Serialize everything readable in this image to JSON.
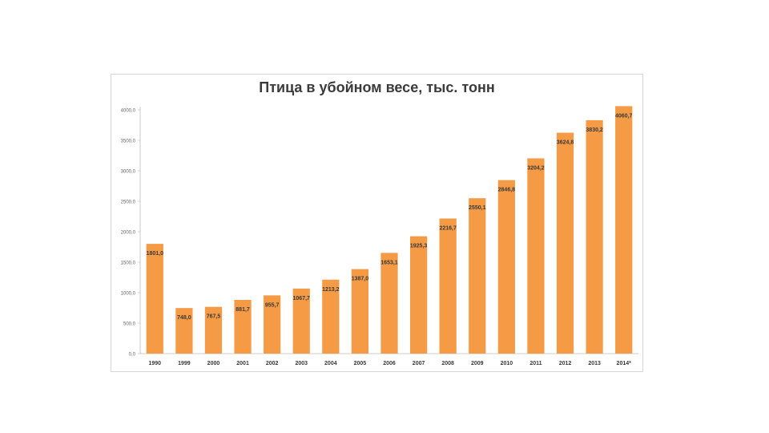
{
  "chart_data": {
    "type": "bar",
    "title": "Птица в убойном весе, тыс. тонн",
    "xlabel": "",
    "ylabel": "",
    "ylim": [
      0,
      4000
    ],
    "yticks": [
      0,
      500,
      1000,
      1500,
      2000,
      2500,
      3000,
      3500,
      4000
    ],
    "ytick_labels": [
      "0,0",
      "500,0",
      "1000,0",
      "1500,0",
      "2000,0",
      "2500,0",
      "3000,0",
      "3500,0",
      "4000,0"
    ],
    "grid": false,
    "legend": "none",
    "bar_color": "#f59a45",
    "categories": [
      "1990",
      "1999",
      "2000",
      "2001",
      "2002",
      "2003",
      "2004",
      "2005",
      "2006",
      "2007",
      "2008",
      "2009",
      "2010",
      "2011",
      "2012",
      "2013",
      "2014*"
    ],
    "values": [
      1801.0,
      748.0,
      767.5,
      881.7,
      955.7,
      1067.7,
      1213.2,
      1387.0,
      1653.1,
      1925.3,
      2216.7,
      2550.1,
      2846.8,
      3204.2,
      3624.8,
      3830.2,
      4060.7
    ],
    "value_labels": [
      "1801,0",
      "748,0",
      "767,5",
      "881,7",
      "955,7",
      "1067,7",
      "1213,2",
      "1387,0",
      "1653,1",
      "1925,3",
      "2216,7",
      "2550,1",
      "2846,8",
      "3204,2",
      "3624,8",
      "3830,2",
      "4060,7"
    ]
  }
}
